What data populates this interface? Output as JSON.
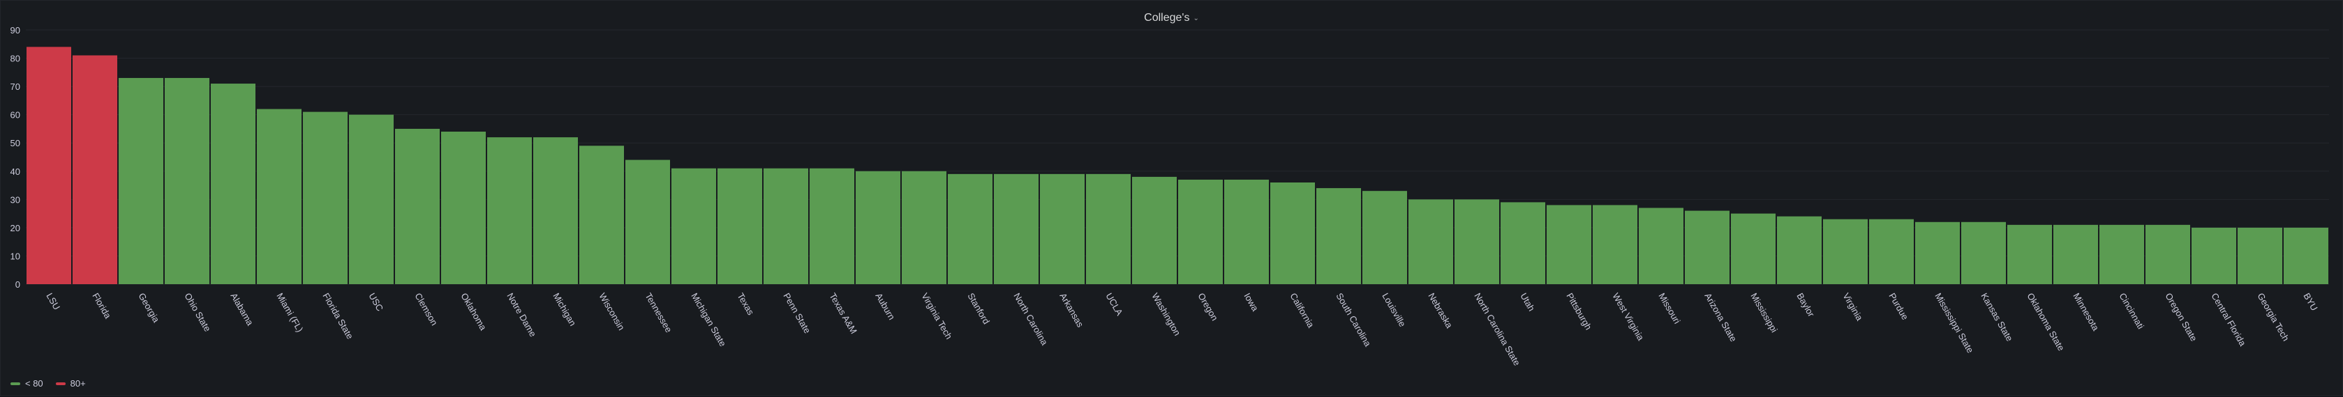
{
  "panel": {
    "title": "College's"
  },
  "colors": {
    "under80": "#5b9c52",
    "over80": "#cd3a48",
    "grid": "#24272d",
    "axis_text": "#ccccdc"
  },
  "legend": [
    {
      "label": "< 80",
      "color": "#5b9c52"
    },
    {
      "label": "80+",
      "color": "#cd3a48"
    }
  ],
  "chart_data": {
    "type": "bar",
    "title": "College's",
    "threshold": 80,
    "ylim": [
      0,
      90
    ],
    "yticks": [
      0,
      10,
      20,
      30,
      40,
      50,
      60,
      70,
      80,
      90
    ],
    "grid": true,
    "legend_position": "bottom-left",
    "categories": [
      "LSU",
      "Florida",
      "Georgia",
      "Ohio State",
      "Alabama",
      "Miami (FL)",
      "Florida State",
      "USC",
      "Clemson",
      "Oklahoma",
      "Notre Dame",
      "Michigan",
      "Wisconsin",
      "Tennessee",
      "Michigan State",
      "Texas",
      "Penn State",
      "Texas A&M",
      "Auburn",
      "Virginia Tech",
      "Stanford",
      "North Carolina",
      "Arkansas",
      "UCLA",
      "Washington",
      "Oregon",
      "Iowa",
      "California",
      "South Carolina",
      "Louisville",
      "Nebraska",
      "North Carolina State",
      "Utah",
      "Pittsburgh",
      "West Virginia",
      "Missouri",
      "Arizona State",
      "Mississippi",
      "Baylor",
      "Virginia",
      "Purdue",
      "Mississippi State",
      "Kansas State",
      "Oklahoma State",
      "Minnesota",
      "Cincinnati",
      "Oregon State",
      "Central Florida",
      "Georgia Tech",
      "BYU"
    ],
    "values": [
      84,
      81,
      73,
      73,
      71,
      62,
      61,
      60,
      55,
      54,
      52,
      52,
      49,
      44,
      41,
      41,
      41,
      41,
      40,
      40,
      39,
      39,
      39,
      39,
      38,
      37,
      37,
      36,
      34,
      33,
      30,
      30,
      29,
      28,
      28,
      27,
      26,
      25,
      24,
      23,
      23,
      22,
      22,
      21,
      21,
      21,
      21,
      20,
      20,
      20
    ]
  }
}
